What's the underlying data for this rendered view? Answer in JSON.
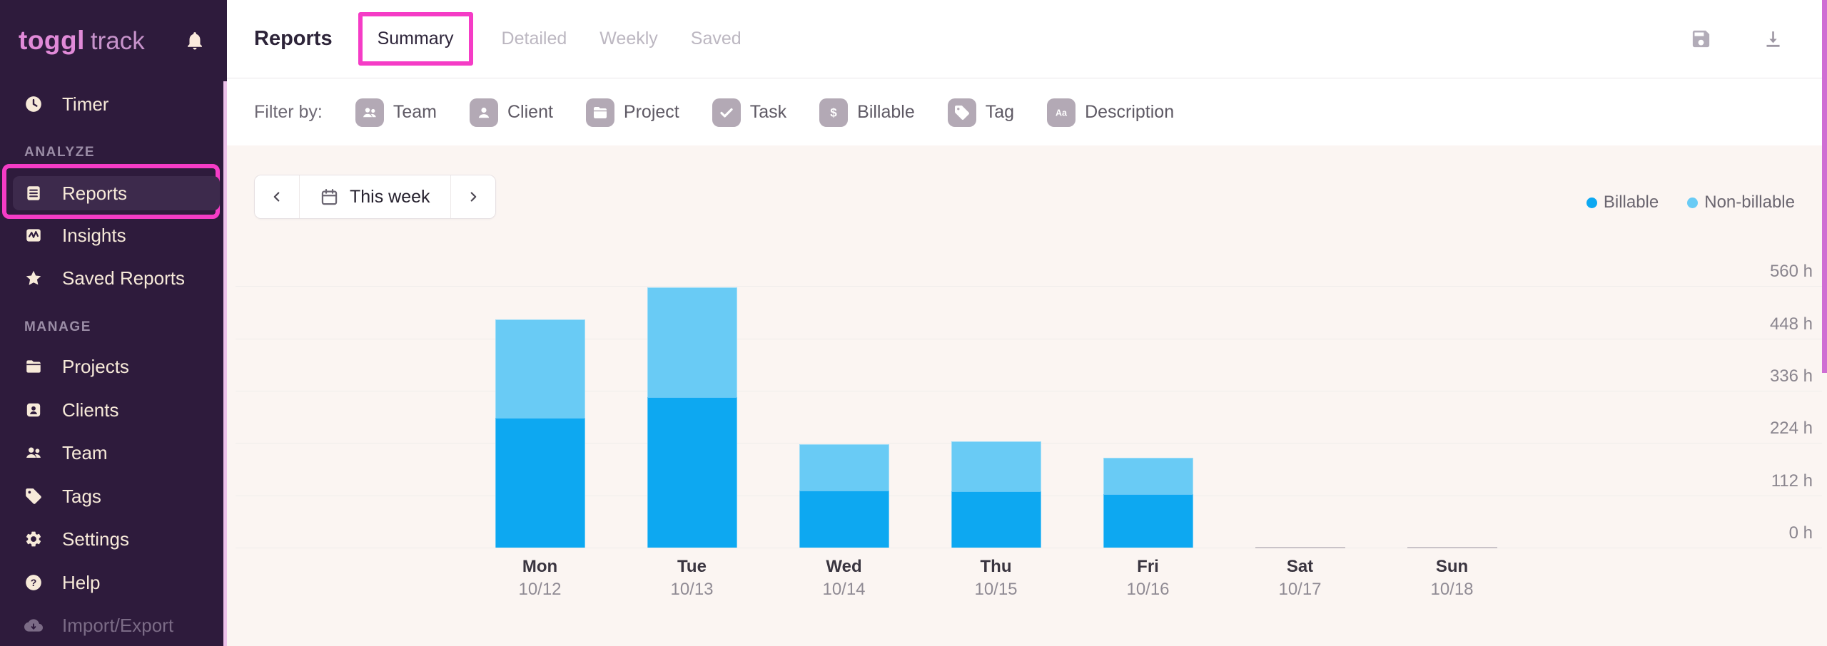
{
  "sidebar": {
    "logo": {
      "primary": "toggl",
      "secondary": "track"
    },
    "sections": [
      {
        "label": "ANALYZE"
      },
      {
        "label": "MANAGE"
      }
    ],
    "items": {
      "timer": "Timer",
      "reports": "Reports",
      "insights": "Insights",
      "saved_reports": "Saved Reports",
      "projects": "Projects",
      "clients": "Clients",
      "team": "Team",
      "tags": "Tags",
      "settings": "Settings",
      "help": "Help",
      "import_export": "Import/Export"
    },
    "selected_item": "Reports"
  },
  "topbar": {
    "title": "Reports",
    "tabs": [
      {
        "label": "Summary",
        "active": true,
        "annotated": true
      },
      {
        "label": "Detailed",
        "active": false
      },
      {
        "label": "Weekly",
        "active": false
      },
      {
        "label": "Saved",
        "active": false
      }
    ],
    "actions": [
      {
        "icon": "save-icon"
      },
      {
        "icon": "download-icon"
      }
    ]
  },
  "filterbar": {
    "label": "Filter by:",
    "filters": [
      {
        "label": "Team",
        "icon": "team-icon"
      },
      {
        "label": "Client",
        "icon": "client-icon"
      },
      {
        "label": "Project",
        "icon": "project-icon"
      },
      {
        "label": "Task",
        "icon": "task-icon"
      },
      {
        "label": "Billable",
        "icon": "billable-icon"
      },
      {
        "label": "Tag",
        "icon": "tag-icon"
      },
      {
        "label": "Description",
        "icon": "description-icon"
      }
    ]
  },
  "date_nav": {
    "label": "This week"
  },
  "icons": {
    "billable_glyph": "$",
    "description_glyph": "Aa",
    "help_glyph": "?"
  },
  "colors": {
    "annotation": "#f53cc6",
    "sidebar_bg": "#2e1b3c",
    "content_bg": "#fbf5f2",
    "billable": "#0da8f1",
    "non_billable": "#69cbf5"
  },
  "chart_data": {
    "type": "bar",
    "stacked": true,
    "title": "",
    "x_labels": [
      {
        "day": "Mon",
        "date": "10/12"
      },
      {
        "day": "Tue",
        "date": "10/13"
      },
      {
        "day": "Wed",
        "date": "10/14"
      },
      {
        "day": "Thu",
        "date": "10/15"
      },
      {
        "day": "Fri",
        "date": "10/16"
      },
      {
        "day": "Sat",
        "date": "10/17"
      },
      {
        "day": "Sun",
        "date": "10/18"
      }
    ],
    "series": [
      {
        "name": "Billable",
        "color": "#0da8f1",
        "values": [
          278,
          322,
          122,
          121,
          115,
          0,
          0
        ]
      },
      {
        "name": "Non-billable",
        "color": "#69cbf5",
        "values": [
          211,
          235,
          99,
          107,
          78,
          0,
          0
        ]
      }
    ],
    "totals": [
      489,
      557,
      221,
      228,
      193,
      0,
      0
    ],
    "y_ticks": [
      560,
      448,
      336,
      224,
      112,
      0
    ],
    "y_unit": "h",
    "ylim": [
      0,
      616
    ],
    "grid": true,
    "legend_position": "top-right"
  }
}
